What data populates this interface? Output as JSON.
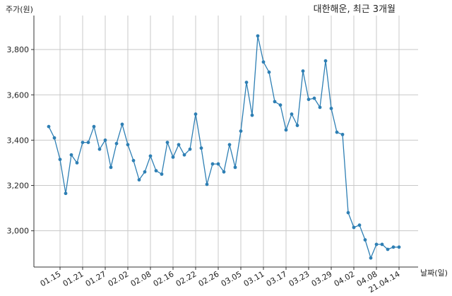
{
  "chart_data": {
    "type": "line",
    "title": "대한해운, 최근 3개월",
    "ylabel": "주가(원)",
    "xlabel": "날짜(일)",
    "ylim": [
      2840,
      3950
    ],
    "yticks": [
      3000,
      3200,
      3400,
      3600,
      3800
    ],
    "ytick_labels": [
      "3,000",
      "3,200",
      "3,400",
      "3,600",
      "3,800"
    ],
    "xtick_labels": [
      "01.15",
      "01.21",
      "01.27",
      "02.02",
      "02.08",
      "02.16",
      "02.22",
      "02.26",
      "03.05",
      "03.11",
      "03.17",
      "03.23",
      "03.29",
      "04.02",
      "04.08",
      "21.04.14"
    ],
    "xtick_indices": [
      2,
      6,
      10,
      14,
      18,
      22,
      26,
      30,
      34,
      38,
      42,
      46,
      50,
      54,
      58,
      62
    ],
    "grid": true,
    "line_color": "#2e7fb4",
    "series": [
      {
        "values": [
          3460,
          3410,
          3315,
          3165,
          3335,
          3300,
          3390,
          3390,
          3460,
          3360,
          3400,
          3280,
          3385,
          3470,
          3380,
          3310,
          3225,
          3260,
          3330,
          3265,
          3250,
          3390,
          3325,
          3380,
          3335,
          3360,
          3515,
          3365,
          3205,
          3295,
          3295,
          3260,
          3380,
          3280,
          3440,
          3655,
          3510,
          3860,
          3745,
          3700,
          3570,
          3555,
          3445,
          3515,
          3465,
          3705,
          3580,
          3585,
          3545,
          3750,
          3540,
          3435,
          3425,
          3080,
          3015,
          3025,
          2960,
          2880,
          2940,
          2940,
          2918,
          2928,
          2928
        ]
      }
    ]
  }
}
